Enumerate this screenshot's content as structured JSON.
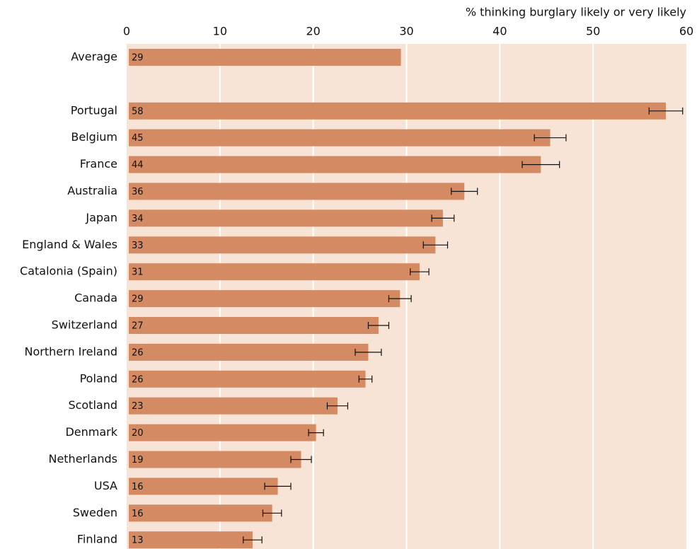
{
  "chart_data": {
    "type": "bar",
    "orientation": "horizontal",
    "x_axis_label": "% thinking burglary likely or very likely",
    "categories": [
      "Average",
      "Portugal",
      "Belgium",
      "France",
      "Australia",
      "Japan",
      "England & Wales",
      "Catalonia (Spain)",
      "Canada",
      "Switzerland",
      "Northern Ireland",
      "Poland",
      "Scotland",
      "Denmark",
      "Netherlands",
      "USA",
      "Sweden",
      "Finland"
    ],
    "values": [
      29.4,
      57.8,
      45.4,
      44.4,
      36.2,
      33.9,
      33.1,
      31.4,
      29.3,
      27.0,
      25.9,
      25.6,
      22.6,
      20.3,
      18.7,
      16.2,
      15.6,
      13.5
    ],
    "value_labels": [
      "29",
      "58",
      "45",
      "44",
      "36",
      "34",
      "33",
      "31",
      "29",
      "27",
      "26",
      "26",
      "23",
      "20",
      "19",
      "16",
      "16",
      "13"
    ],
    "errors": [
      null,
      1.8,
      1.7,
      2.0,
      1.4,
      1.2,
      1.3,
      1.0,
      1.2,
      1.1,
      1.4,
      0.7,
      1.1,
      0.8,
      1.1,
      1.4,
      1.0,
      1.0
    ],
    "color": "#d48a62",
    "background": "#f7e4d7",
    "xlim": [
      0,
      60
    ],
    "xticks": [
      0,
      10,
      20,
      30,
      40,
      50,
      60
    ],
    "grid": true
  }
}
